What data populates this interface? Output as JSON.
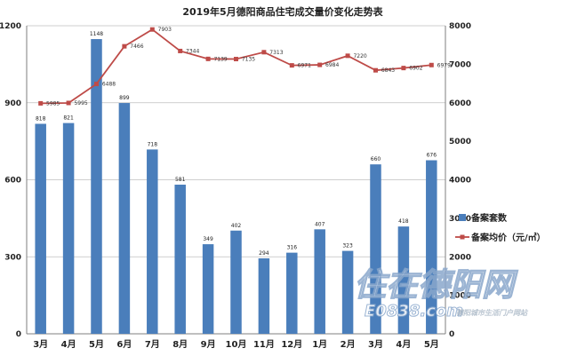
{
  "chart_data": {
    "type": "bar+line",
    "title": "2019年5月德阳商品住宅成交量价变化走势表",
    "categories": [
      "3月",
      "4月",
      "5月",
      "6月",
      "7月",
      "8月",
      "9月",
      "10月",
      "11月",
      "12月",
      "1月",
      "2月",
      "3月",
      "4月",
      "5月"
    ],
    "series": [
      {
        "name": "备案套数",
        "type": "bar",
        "axis": "left",
        "color": "#4a7ebb",
        "values": [
          818,
          821,
          1148,
          899,
          718,
          581,
          349,
          402,
          294,
          316,
          407,
          323,
          660,
          418,
          676
        ]
      },
      {
        "name": "备案均价（元/㎡）",
        "type": "line",
        "axis": "right",
        "color": "#be4b48",
        "values": [
          5985,
          5995,
          6488,
          7466,
          7903,
          7344,
          7139,
          7135,
          7313,
          6971,
          6984,
          7220,
          6843,
          6902,
          6979
        ]
      }
    ],
    "y_left": {
      "min": 0,
      "max": 1200,
      "ticks": [
        0,
        300,
        600,
        900,
        1200
      ]
    },
    "y_right": {
      "min": 0,
      "max": 8000,
      "ticks": [
        0,
        1000,
        2000,
        3000,
        4000,
        5000,
        6000,
        7000,
        8000
      ]
    },
    "grid": true,
    "legend_position": "right"
  },
  "watermark": {
    "main": "住在德阳网",
    "domain": "E0838.com",
    "slogan": "德阳城市生活门户网站"
  }
}
